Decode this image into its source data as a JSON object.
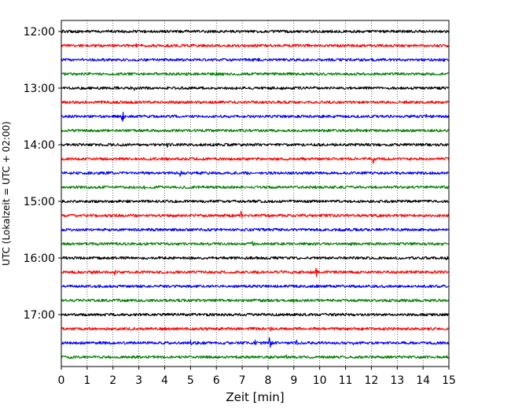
{
  "chart_data": {
    "type": "line",
    "title": "",
    "xlabel": "Zeit  [min]",
    "ylabel": "UTC (Lokalzeit = UTC + 02:00)",
    "xlim": [
      0,
      15
    ],
    "x_ticks": [
      0,
      1,
      2,
      3,
      4,
      5,
      6,
      7,
      8,
      9,
      10,
      11,
      12,
      13,
      14,
      15
    ],
    "x_tick_labels": [
      "0",
      "1",
      "2",
      "3",
      "4",
      "5",
      "6",
      "7",
      "8",
      "9",
      "10",
      "11",
      "12",
      "13",
      "14",
      "15"
    ],
    "y_tick_labels": [
      "12:00",
      "13:00",
      "14:00",
      "15:00",
      "16:00",
      "17:00"
    ],
    "y_tick_rows": [
      0,
      4,
      8,
      12,
      16,
      20
    ],
    "grid": "vertical dotted lines at each minute",
    "row_interval_minutes": 15,
    "trace_colors": [
      "#000000",
      "#ff0000",
      "#0000ff",
      "#008000"
    ],
    "rows": [
      {
        "start": "12:00",
        "events": [
          [
            0.5,
            0.5
          ],
          [
            4.1,
            0.4
          ],
          [
            9.2,
            0.4
          ]
        ]
      },
      {
        "start": "12:15",
        "events": [
          [
            2.4,
            0.7
          ],
          [
            2.9,
            0.6
          ],
          [
            3.5,
            0.5
          ],
          [
            6.2,
            0.4
          ]
        ]
      },
      {
        "start": "12:30",
        "events": [
          [
            1.1,
            0.4
          ],
          [
            8.9,
            0.4
          ],
          [
            14.8,
            0.9
          ]
        ]
      },
      {
        "start": "12:45",
        "events": [
          [
            6.0,
            0.9
          ],
          [
            13.0,
            0.4
          ]
        ]
      },
      {
        "start": "13:00",
        "events": [
          [
            2.8,
            1.0
          ],
          [
            4.3,
            0.6
          ],
          [
            10.6,
            0.4
          ]
        ]
      },
      {
        "start": "13:15",
        "events": [
          [
            7.7,
            0.6
          ],
          [
            12.6,
            0.4
          ]
        ]
      },
      {
        "start": "13:30",
        "events": [
          [
            2.35,
            2.2
          ],
          [
            14.1,
            0.9
          ]
        ]
      },
      {
        "start": "13:45",
        "events": [
          [
            11.4,
            1.2
          ],
          [
            1.6,
            0.4
          ],
          [
            8.1,
            0.4
          ]
        ]
      },
      {
        "start": "14:00",
        "events": [
          [
            2.3,
            0.5
          ],
          [
            4.1,
            0.9
          ],
          [
            10.8,
            0.4
          ]
        ]
      },
      {
        "start": "14:15",
        "events": [
          [
            1.7,
            0.6
          ],
          [
            12.05,
            1.6
          ],
          [
            6.6,
            0.4
          ]
        ]
      },
      {
        "start": "14:30",
        "events": [
          [
            4.6,
            1.1
          ],
          [
            8.2,
            0.5
          ],
          [
            10.4,
            0.6
          ]
        ]
      },
      {
        "start": "14:45",
        "events": [
          [
            3.2,
            0.9
          ],
          [
            6.1,
            0.4
          ],
          [
            11.6,
            0.4
          ]
        ]
      },
      {
        "start": "15:00",
        "events": [
          [
            1.3,
            0.4
          ],
          [
            9.9,
            0.6
          ],
          [
            13.9,
            0.4
          ]
        ]
      },
      {
        "start": "15:15",
        "events": [
          [
            5.3,
            0.5
          ],
          [
            6.95,
            1.3
          ],
          [
            10.1,
            0.4
          ]
        ]
      },
      {
        "start": "15:30",
        "events": [
          [
            1.6,
            0.6
          ],
          [
            8.8,
            0.5
          ],
          [
            12.3,
            0.4
          ]
        ]
      },
      {
        "start": "15:45",
        "events": [
          [
            7.4,
            1.2
          ],
          [
            4.2,
            0.4
          ],
          [
            14.4,
            0.5
          ]
        ]
      },
      {
        "start": "16:00",
        "events": [
          [
            1.6,
            0.5
          ],
          [
            8.9,
            0.6
          ],
          [
            14.9,
            0.9
          ]
        ]
      },
      {
        "start": "16:15",
        "events": [
          [
            1.15,
            0.8
          ],
          [
            2.05,
            1.0
          ],
          [
            8.5,
            0.7
          ],
          [
            9.85,
            1.8
          ],
          [
            11.4,
            0.6
          ]
        ]
      },
      {
        "start": "16:30",
        "events": [
          [
            1.5,
            0.6
          ],
          [
            4.3,
            0.5
          ],
          [
            11.8,
            0.5
          ]
        ]
      },
      {
        "start": "16:45",
        "events": [
          [
            5.85,
            1.1
          ],
          [
            9.0,
            0.6
          ],
          [
            12.8,
            0.4
          ]
        ]
      },
      {
        "start": "17:00",
        "events": [
          [
            0.7,
            0.5
          ],
          [
            5.4,
            0.4
          ],
          [
            11.0,
            0.6
          ]
        ]
      },
      {
        "start": "17:15",
        "events": [
          [
            3.3,
            0.4
          ],
          [
            8.1,
            0.7
          ],
          [
            12.7,
            0.4
          ]
        ]
      },
      {
        "start": "17:30",
        "events": [
          [
            1.8,
            0.6
          ],
          [
            5.0,
            1.2
          ],
          [
            7.5,
            0.8
          ],
          [
            8.05,
            2.8
          ],
          [
            9.1,
            1.0
          ],
          [
            11.3,
            0.5
          ]
        ]
      },
      {
        "start": "17:45",
        "events": [
          [
            1.8,
            0.5
          ],
          [
            8.7,
            0.9
          ],
          [
            9.1,
            0.6
          ]
        ]
      }
    ]
  }
}
